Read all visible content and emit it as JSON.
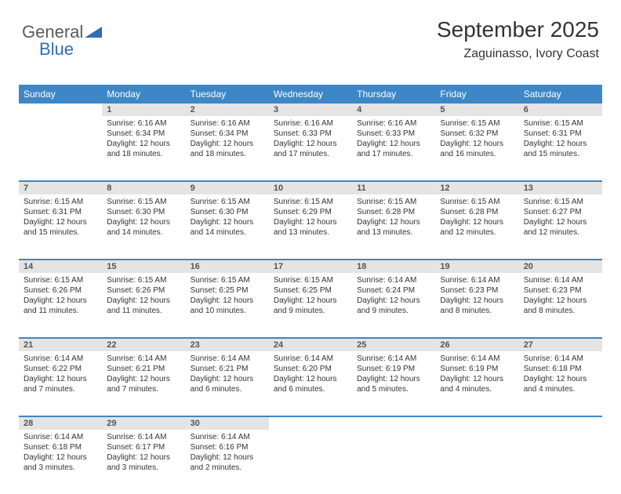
{
  "logo": {
    "text1": "General",
    "text2": "Blue"
  },
  "title": "September 2025",
  "location": "Zaguinasso, Ivory Coast",
  "header_bg": "#3d87c7",
  "daynum_bg": "#e4e4e4",
  "dayHeaders": [
    "Sunday",
    "Monday",
    "Tuesday",
    "Wednesday",
    "Thursday",
    "Friday",
    "Saturday"
  ],
  "weeks": [
    [
      null,
      {
        "n": "1",
        "sr": "6:16 AM",
        "ss": "6:34 PM",
        "dl": "12 hours and 18 minutes."
      },
      {
        "n": "2",
        "sr": "6:16 AM",
        "ss": "6:34 PM",
        "dl": "12 hours and 18 minutes."
      },
      {
        "n": "3",
        "sr": "6:16 AM",
        "ss": "6:33 PM",
        "dl": "12 hours and 17 minutes."
      },
      {
        "n": "4",
        "sr": "6:16 AM",
        "ss": "6:33 PM",
        "dl": "12 hours and 17 minutes."
      },
      {
        "n": "5",
        "sr": "6:15 AM",
        "ss": "6:32 PM",
        "dl": "12 hours and 16 minutes."
      },
      {
        "n": "6",
        "sr": "6:15 AM",
        "ss": "6:31 PM",
        "dl": "12 hours and 15 minutes."
      }
    ],
    [
      {
        "n": "7",
        "sr": "6:15 AM",
        "ss": "6:31 PM",
        "dl": "12 hours and 15 minutes."
      },
      {
        "n": "8",
        "sr": "6:15 AM",
        "ss": "6:30 PM",
        "dl": "12 hours and 14 minutes."
      },
      {
        "n": "9",
        "sr": "6:15 AM",
        "ss": "6:30 PM",
        "dl": "12 hours and 14 minutes."
      },
      {
        "n": "10",
        "sr": "6:15 AM",
        "ss": "6:29 PM",
        "dl": "12 hours and 13 minutes."
      },
      {
        "n": "11",
        "sr": "6:15 AM",
        "ss": "6:28 PM",
        "dl": "12 hours and 13 minutes."
      },
      {
        "n": "12",
        "sr": "6:15 AM",
        "ss": "6:28 PM",
        "dl": "12 hours and 12 minutes."
      },
      {
        "n": "13",
        "sr": "6:15 AM",
        "ss": "6:27 PM",
        "dl": "12 hours and 12 minutes."
      }
    ],
    [
      {
        "n": "14",
        "sr": "6:15 AM",
        "ss": "6:26 PM",
        "dl": "12 hours and 11 minutes."
      },
      {
        "n": "15",
        "sr": "6:15 AM",
        "ss": "6:26 PM",
        "dl": "12 hours and 11 minutes."
      },
      {
        "n": "16",
        "sr": "6:15 AM",
        "ss": "6:25 PM",
        "dl": "12 hours and 10 minutes."
      },
      {
        "n": "17",
        "sr": "6:15 AM",
        "ss": "6:25 PM",
        "dl": "12 hours and 9 minutes."
      },
      {
        "n": "18",
        "sr": "6:14 AM",
        "ss": "6:24 PM",
        "dl": "12 hours and 9 minutes."
      },
      {
        "n": "19",
        "sr": "6:14 AM",
        "ss": "6:23 PM",
        "dl": "12 hours and 8 minutes."
      },
      {
        "n": "20",
        "sr": "6:14 AM",
        "ss": "6:23 PM",
        "dl": "12 hours and 8 minutes."
      }
    ],
    [
      {
        "n": "21",
        "sr": "6:14 AM",
        "ss": "6:22 PM",
        "dl": "12 hours and 7 minutes."
      },
      {
        "n": "22",
        "sr": "6:14 AM",
        "ss": "6:21 PM",
        "dl": "12 hours and 7 minutes."
      },
      {
        "n": "23",
        "sr": "6:14 AM",
        "ss": "6:21 PM",
        "dl": "12 hours and 6 minutes."
      },
      {
        "n": "24",
        "sr": "6:14 AM",
        "ss": "6:20 PM",
        "dl": "12 hours and 6 minutes."
      },
      {
        "n": "25",
        "sr": "6:14 AM",
        "ss": "6:19 PM",
        "dl": "12 hours and 5 minutes."
      },
      {
        "n": "26",
        "sr": "6:14 AM",
        "ss": "6:19 PM",
        "dl": "12 hours and 4 minutes."
      },
      {
        "n": "27",
        "sr": "6:14 AM",
        "ss": "6:18 PM",
        "dl": "12 hours and 4 minutes."
      }
    ],
    [
      {
        "n": "28",
        "sr": "6:14 AM",
        "ss": "6:18 PM",
        "dl": "12 hours and 3 minutes."
      },
      {
        "n": "29",
        "sr": "6:14 AM",
        "ss": "6:17 PM",
        "dl": "12 hours and 3 minutes."
      },
      {
        "n": "30",
        "sr": "6:14 AM",
        "ss": "6:16 PM",
        "dl": "12 hours and 2 minutes."
      },
      null,
      null,
      null,
      null
    ]
  ],
  "labels": {
    "sunrise": "Sunrise:",
    "sunset": "Sunset:",
    "daylight": "Daylight:"
  }
}
